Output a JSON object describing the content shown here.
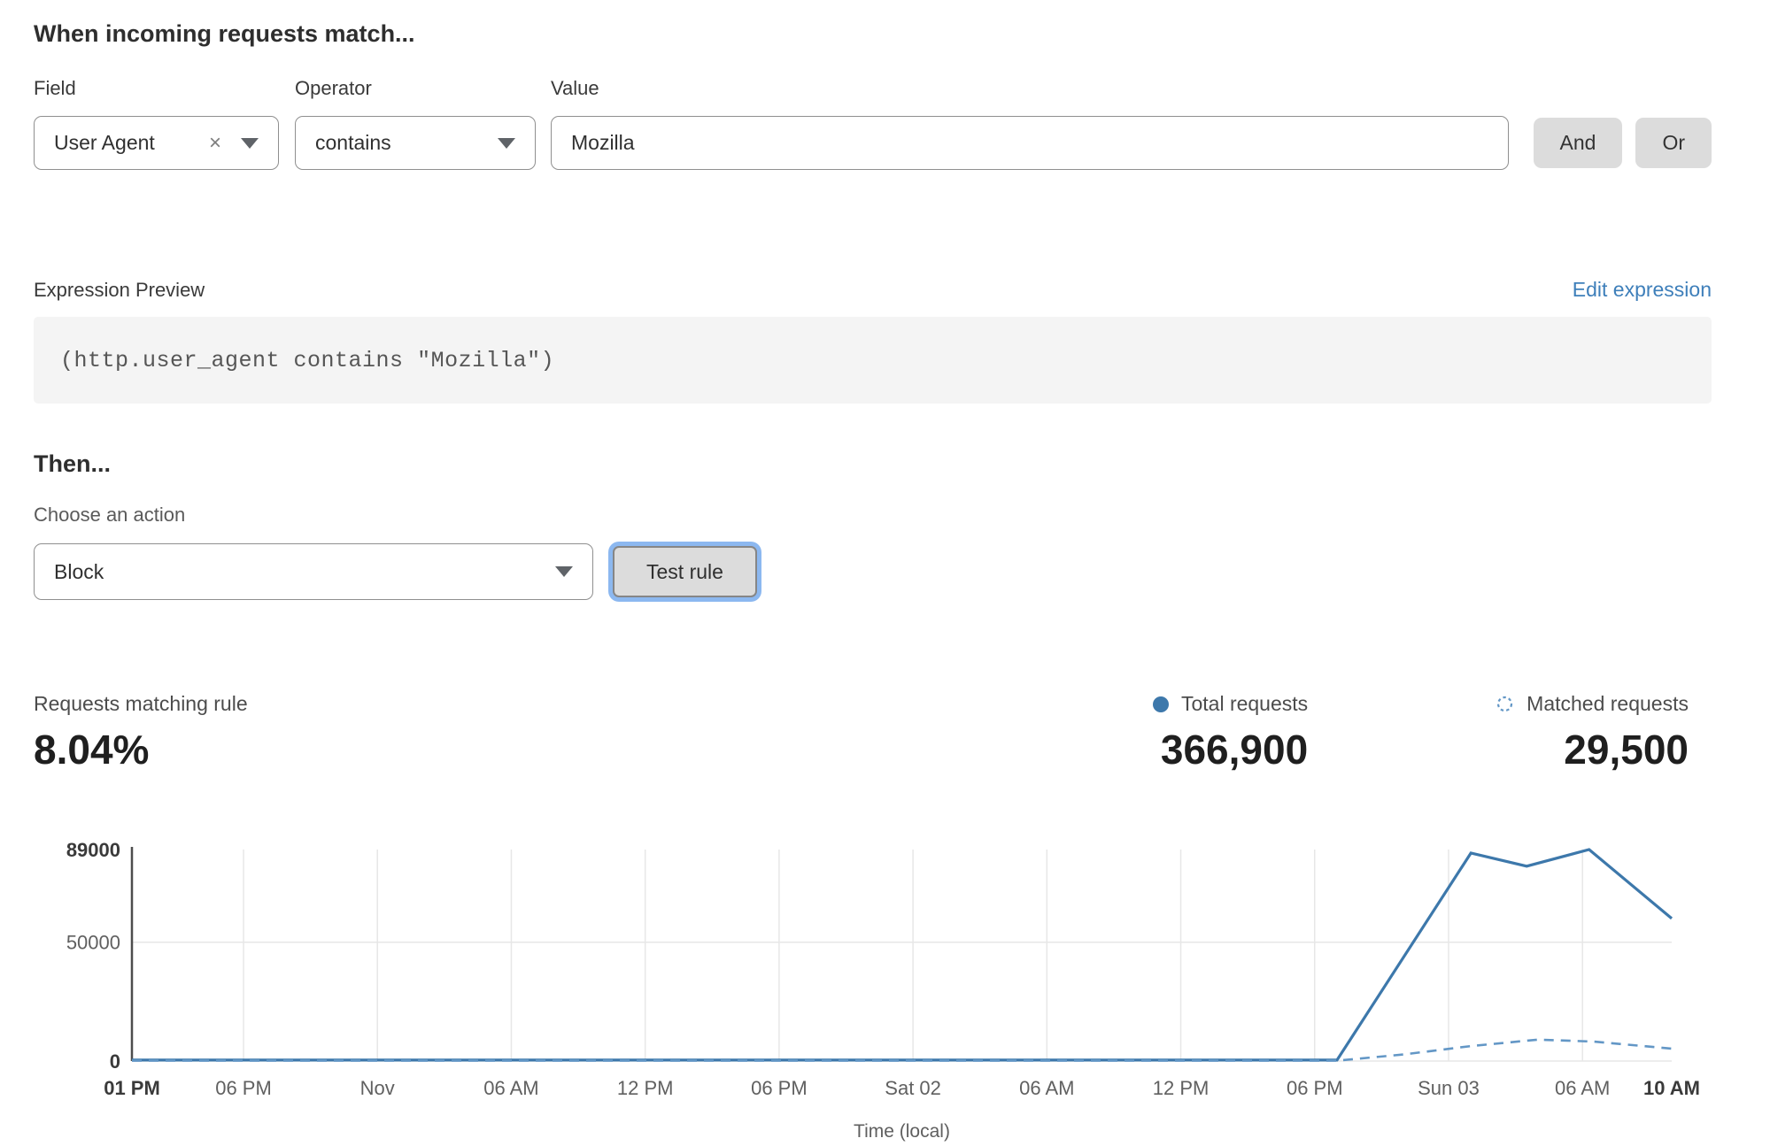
{
  "page": {
    "title": "When incoming requests match..."
  },
  "condition": {
    "field": {
      "label": "Field",
      "value": "User Agent"
    },
    "operator": {
      "label": "Operator",
      "value": "contains"
    },
    "value": {
      "label": "Value",
      "value": "Mozilla"
    },
    "and_label": "And",
    "or_label": "Or"
  },
  "expression": {
    "label": "Expression Preview",
    "edit_link": "Edit expression",
    "code": "(http.user_agent contains \"Mozilla\")"
  },
  "then": {
    "heading": "Then...",
    "action_label": "Choose an action",
    "action_value": "Block",
    "test_button": "Test rule"
  },
  "stats": {
    "matching": {
      "label": "Requests matching rule",
      "value": "8.04%"
    },
    "total": {
      "label": "Total requests",
      "value": "366,900"
    },
    "matched": {
      "label": "Matched requests",
      "value": "29,500"
    }
  },
  "chart_data": {
    "type": "line",
    "title": "",
    "xlabel": "Time (local)",
    "ylabel": "",
    "ylim": [
      0,
      89000
    ],
    "grid": true,
    "legend_position": "above-right",
    "yticks": [
      {
        "value": 0,
        "label": "0",
        "bold": true
      },
      {
        "value": 50000,
        "label": "50000",
        "bold": false
      },
      {
        "value": 89000,
        "label": "89000",
        "bold": true
      }
    ],
    "xticks": [
      {
        "hour": 0,
        "label": "01 PM",
        "bold": true
      },
      {
        "hour": 5,
        "label": "06 PM",
        "bold": false
      },
      {
        "hour": 11,
        "label": "Nov",
        "bold": false
      },
      {
        "hour": 17,
        "label": "06 AM",
        "bold": false
      },
      {
        "hour": 23,
        "label": "12 PM",
        "bold": false
      },
      {
        "hour": 29,
        "label": "06 PM",
        "bold": false
      },
      {
        "hour": 35,
        "label": "Sat 02",
        "bold": false
      },
      {
        "hour": 41,
        "label": "06 AM",
        "bold": false
      },
      {
        "hour": 47,
        "label": "12 PM",
        "bold": false
      },
      {
        "hour": 53,
        "label": "06 PM",
        "bold": false
      },
      {
        "hour": 59,
        "label": "Sun 03",
        "bold": false
      },
      {
        "hour": 65,
        "label": "06 AM",
        "bold": false
      },
      {
        "hour": 69,
        "label": "10 AM",
        "bold": true
      }
    ],
    "series": [
      {
        "name": "Total requests",
        "style": "solid",
        "color": "#3d78ab",
        "points": [
          [
            0,
            400
          ],
          [
            54,
            400
          ],
          [
            60,
            87500
          ],
          [
            62.5,
            82000
          ],
          [
            65.3,
            89000
          ],
          [
            69,
            60000
          ]
        ]
      },
      {
        "name": "Matched requests",
        "style": "dashed",
        "color": "#6397c6",
        "points": [
          [
            0,
            150
          ],
          [
            54,
            150
          ],
          [
            57,
            2800
          ],
          [
            60,
            6300
          ],
          [
            63,
            9000
          ],
          [
            65.5,
            8200
          ],
          [
            69,
            5200
          ]
        ]
      }
    ]
  },
  "colors": {
    "link": "#3e7fba",
    "line_total": "#3d78ab",
    "line_matched": "#6397c6",
    "focus_ring": "#8cb8f0",
    "grid": "#e7e7e7",
    "axis": "#4d4d4d"
  }
}
